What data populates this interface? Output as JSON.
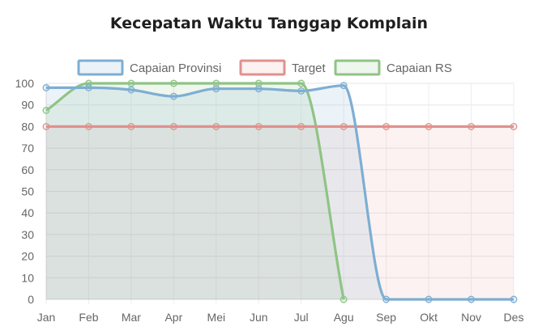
{
  "chart_data": {
    "type": "line",
    "title": "Kecepatan Waktu Tanggap Komplain",
    "categories": [
      "Jan",
      "Feb",
      "Mar",
      "Apr",
      "Mei",
      "Jun",
      "Jul",
      "Agu",
      "Sep",
      "Okt",
      "Nov",
      "Des"
    ],
    "ylim": [
      0,
      100
    ],
    "yticks": [
      0,
      10,
      20,
      30,
      40,
      50,
      60,
      70,
      80,
      90,
      100
    ],
    "grid": true,
    "legend_position": "top",
    "series": [
      {
        "name": "Capaian Provinsi",
        "color": "#7eaed3",
        "fill": "rgba(126,174,211,0.15)",
        "values": [
          98,
          98,
          97,
          94,
          97.5,
          97.5,
          96.5,
          99,
          0,
          0,
          0,
          0
        ]
      },
      {
        "name": "Target",
        "color": "#e0918d",
        "fill": "rgba(224,145,141,0.12)",
        "values": [
          80,
          80,
          80,
          80,
          80,
          80,
          80,
          80,
          80,
          80,
          80,
          80
        ]
      },
      {
        "name": "Capaian RS",
        "color": "#8fc486",
        "fill": "rgba(143,196,134,0.15)",
        "values": [
          87.5,
          100,
          100,
          100,
          100,
          100,
          100,
          0,
          null,
          null,
          null,
          null
        ]
      }
    ]
  }
}
